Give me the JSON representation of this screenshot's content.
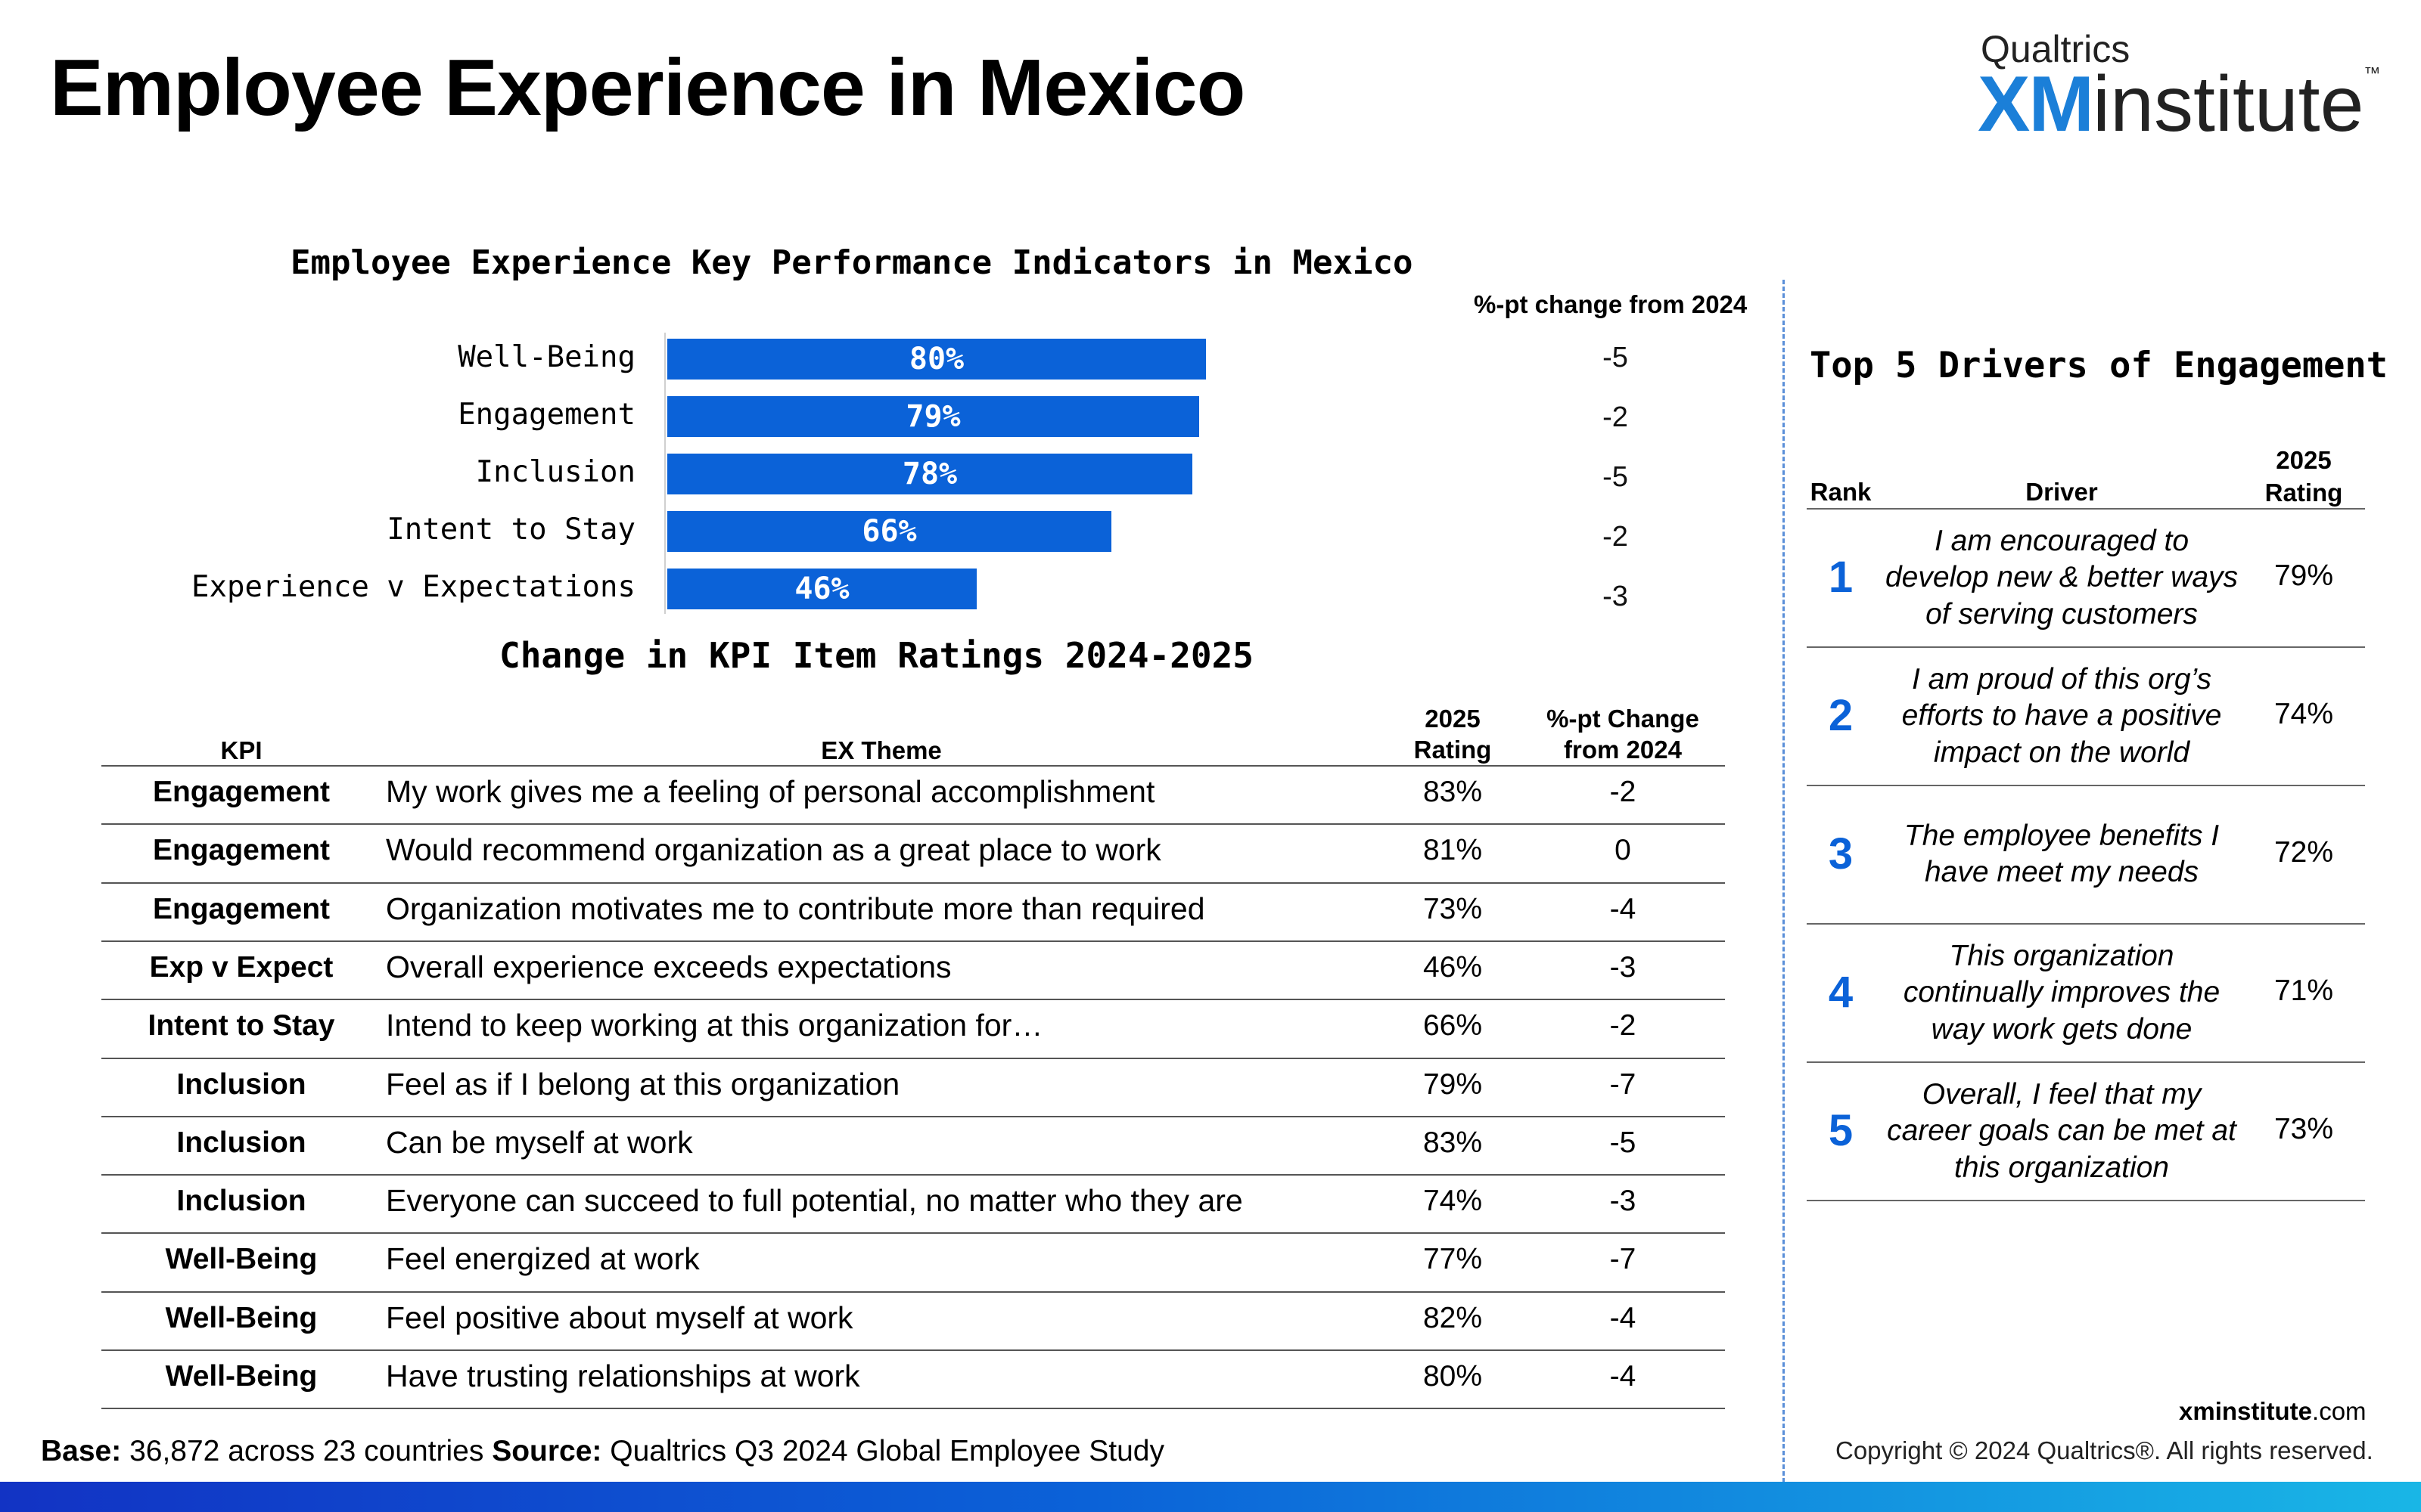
{
  "title": "Employee Experience in Mexico",
  "logo": {
    "brand": "Qualtrics",
    "xm": "XM",
    "institute": "institute",
    "tm": "™"
  },
  "chart_data": {
    "type": "bar",
    "orientation": "horizontal",
    "title": "Employee Experience Key Performance Indicators in Mexico",
    "categories": [
      "Well-Being",
      "Engagement",
      "Inclusion",
      "Intent to Stay",
      "Experience v Expectations"
    ],
    "values": [
      80,
      79,
      78,
      66,
      46
    ],
    "value_labels": [
      "80%",
      "79%",
      "78%",
      "66%",
      "46%"
    ],
    "change_header": "%-pt change from 2024",
    "changes": [
      "-5",
      "-2",
      "-5",
      "-2",
      "-3"
    ],
    "xlim": [
      0,
      100
    ],
    "bar_color": "#0b62d8"
  },
  "kpi_table": {
    "title": "Change in KPI Item Ratings 2024-2025",
    "headers": {
      "kpi": "KPI",
      "theme": "EX Theme",
      "rating_l1": "2025",
      "rating_l2": "Rating",
      "change_l1": "%-pt Change",
      "change_l2": "from 2024"
    },
    "rows": [
      {
        "kpi": "Engagement",
        "theme": "My work gives me a feeling of personal accomplishment",
        "rating": "83%",
        "change": "-2"
      },
      {
        "kpi": "Engagement",
        "theme": "Would recommend organization as a great place to work",
        "rating": "81%",
        "change": "0"
      },
      {
        "kpi": "Engagement",
        "theme": "Organization motivates me to contribute more than required",
        "rating": "73%",
        "change": "-4"
      },
      {
        "kpi": "Exp v Expect",
        "theme": "Overall experience exceeds expectations",
        "rating": "46%",
        "change": "-3"
      },
      {
        "kpi": "Intent to Stay",
        "theme": "Intend to keep working at this organization for…",
        "rating": "66%",
        "change": "-2"
      },
      {
        "kpi": "Inclusion",
        "theme": "Feel as if I belong at this organization",
        "rating": "79%",
        "change": "-7"
      },
      {
        "kpi": "Inclusion",
        "theme": "Can be myself at work",
        "rating": "83%",
        "change": "-5"
      },
      {
        "kpi": "Inclusion",
        "theme": "Everyone can succeed to full potential, no matter who they are",
        "rating": "74%",
        "change": "-3"
      },
      {
        "kpi": "Well-Being",
        "theme": "Feel energized at work",
        "rating": "77%",
        "change": "-7"
      },
      {
        "kpi": "Well-Being",
        "theme": "Feel positive about myself at work",
        "rating": "82%",
        "change": "-4"
      },
      {
        "kpi": "Well-Being",
        "theme": "Have trusting relationships at work",
        "rating": "80%",
        "change": "-4"
      }
    ]
  },
  "drivers": {
    "title": "Top 5 Drivers of Engagement",
    "headers": {
      "rank": "Rank",
      "driver": "Driver",
      "rating_l1": "2025",
      "rating_l2": "Rating"
    },
    "rows": [
      {
        "rank": "1",
        "lines": [
          "I am encouraged to",
          "develop new & better ways",
          "of serving customers"
        ],
        "rating": "79%"
      },
      {
        "rank": "2",
        "lines": [
          "I am proud of this org’s",
          "efforts to have a positive",
          "impact on the world"
        ],
        "rating": "74%"
      },
      {
        "rank": "3",
        "lines": [
          "The employee benefits I",
          "have meet my needs"
        ],
        "rating": "72%"
      },
      {
        "rank": "4",
        "lines": [
          "This organization",
          "continually improves the",
          "way work gets done"
        ],
        "rating": "71%"
      },
      {
        "rank": "5",
        "lines": [
          "Overall, I feel that my",
          "career goals can be met at",
          "this organization"
        ],
        "rating": "73%"
      }
    ]
  },
  "footer": {
    "base_label": "Base:",
    "base_value": "36,872 across 23 countries",
    "source_label": "Source:",
    "source_value": "Qualtrics Q3 2024 Global Employee Study",
    "site_bold": "xminstitute",
    "site_rest": ".com",
    "copyright": "Copyright © 2024 Qualtrics®. All rights reserved."
  }
}
